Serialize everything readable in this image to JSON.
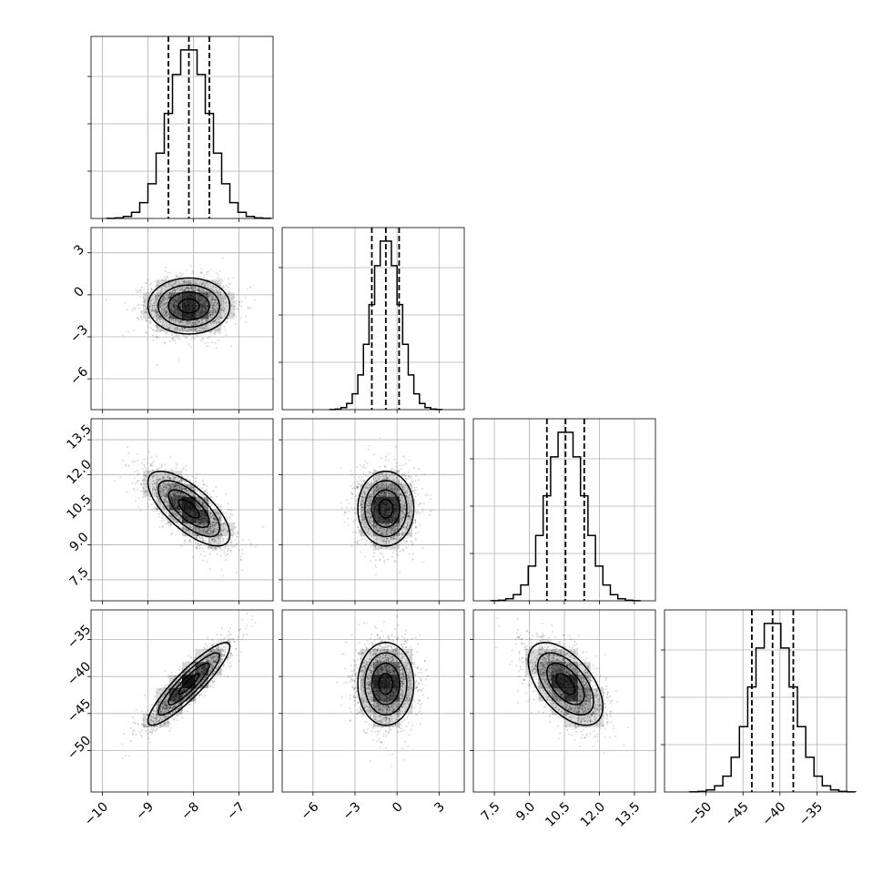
{
  "chart_data": {
    "type": "corner",
    "parameters": [
      {
        "mean": -8.1,
        "sd": 0.45,
        "range": [
          -10.25,
          -6.25
        ],
        "ticks": [
          -10,
          -9,
          -8,
          -7
        ],
        "tick_labels": [
          "−10",
          "−9",
          "−8",
          "−7"
        ],
        "quantiles": [
          -8.55,
          -8.1,
          -7.65
        ]
      },
      {
        "mean": -0.8,
        "sd": 1.0,
        "range": [
          -8.2,
          4.8
        ],
        "ticks": [
          -6,
          -3,
          0,
          3
        ],
        "tick_labels": [
          "−6",
          "−3",
          "0",
          "3"
        ],
        "quantiles": [
          -1.8,
          -0.8,
          0.15
        ]
      },
      {
        "mean": 10.55,
        "sd": 0.8,
        "range": [
          6.6,
          14.4
        ],
        "ticks": [
          7.5,
          9.0,
          10.5,
          12.0,
          13.5
        ],
        "tick_labels": [
          "7.5",
          "9.0",
          "10.5",
          "12.0",
          "13.5"
        ],
        "quantiles": [
          9.75,
          10.55,
          11.35
        ]
      },
      {
        "mean": -41.0,
        "sd": 2.8,
        "range": [
          -55.6,
          -31.0
        ],
        "ticks": [
          -50,
          -45,
          -40,
          -35
        ],
        "tick_labels": [
          "−50",
          "−45",
          "−40",
          "−35"
        ],
        "quantiles": [
          -43.8,
          -41.0,
          -38.2
        ]
      }
    ],
    "correlations": [
      [
        1.0,
        0.0,
        -0.7,
        0.9
      ],
      [
        0.0,
        1.0,
        0.0,
        0.0
      ],
      [
        -0.7,
        0.0,
        1.0,
        -0.55
      ],
      [
        0.9,
        0.0,
        -0.55,
        1.0
      ]
    ],
    "histogram_bins": 20,
    "contour_levels_sigma": [
      0.5,
      1.0,
      1.5,
      2.0
    ],
    "grid": true,
    "title": "",
    "axis_labels": []
  }
}
